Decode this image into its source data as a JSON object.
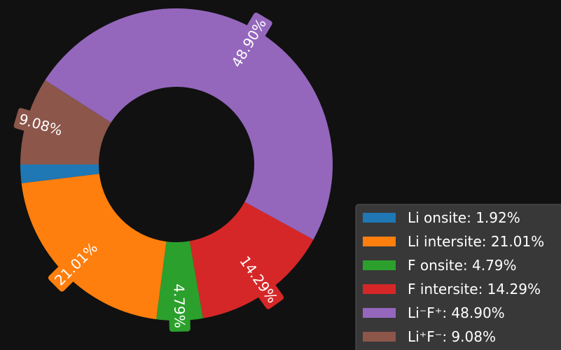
{
  "chart_data": {
    "type": "donut",
    "categories": [
      "Li onsite: 1.92%",
      "Li intersite: 21.01%",
      "F onsite: 4.79%",
      "F intersite: 14.29%",
      "Li⁻F⁺: 48.90%",
      "Li⁺F⁻: 9.08%"
    ],
    "values": [
      1.92,
      21.01,
      4.79,
      14.29,
      48.9,
      9.08
    ],
    "value_labels": [
      null,
      "21.01%",
      "4.79%",
      "14.29%",
      "48.90%",
      "9.08%"
    ],
    "colors": [
      "#1f77b4",
      "#ff7f0e",
      "#2ca02c",
      "#d62728",
      "#9467bd",
      "#8c564b"
    ],
    "legend": "lower right"
  }
}
